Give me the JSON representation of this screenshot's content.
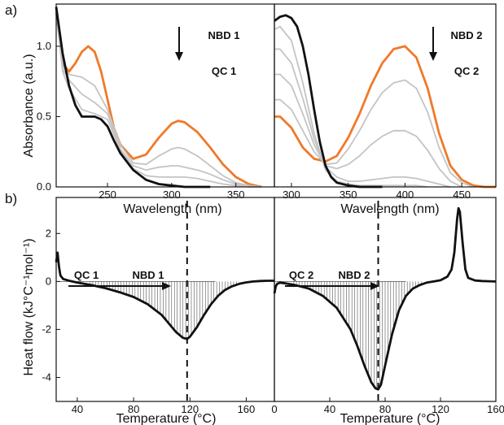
{
  "figure": {
    "panel_a_label": "a)",
    "panel_b_label": "b)",
    "colors": {
      "orange": "#f0792a",
      "black": "#111111",
      "gray": "#c4c4c4"
    }
  },
  "chart_data": [
    {
      "id": "a1",
      "type": "line",
      "xlabel": "Wavelength (nm)",
      "ylabel": "Absorbance (a.u.)",
      "xlim": [
        210,
        380
      ],
      "ylim": [
        0,
        1.3
      ],
      "xticks": [
        250,
        300,
        350
      ],
      "yticks": [
        0.0,
        0.5,
        1.0
      ],
      "annotations": [
        "NBD 1",
        "QC 1"
      ],
      "series": [
        {
          "style": "orange",
          "x": [
            210,
            215,
            220,
            225,
            230,
            235,
            240,
            245,
            250,
            255,
            260,
            270,
            280,
            290,
            300,
            305,
            310,
            320,
            330,
            340,
            350,
            360,
            365,
            370
          ],
          "y": [
            1.25,
            0.88,
            0.82,
            0.88,
            0.96,
            1.0,
            0.96,
            0.82,
            0.62,
            0.42,
            0.3,
            0.2,
            0.23,
            0.35,
            0.45,
            0.47,
            0.46,
            0.39,
            0.28,
            0.16,
            0.07,
            0.02,
            0.01,
            0.0
          ]
        },
        {
          "style": "gray",
          "x": [
            210,
            215,
            220,
            230,
            240,
            250,
            260,
            270,
            280,
            290,
            300,
            305,
            310,
            320,
            330,
            340,
            350,
            360,
            370
          ],
          "y": [
            1.25,
            0.86,
            0.8,
            0.78,
            0.72,
            0.55,
            0.3,
            0.17,
            0.16,
            0.22,
            0.27,
            0.28,
            0.27,
            0.22,
            0.15,
            0.08,
            0.03,
            0.01,
            0.0
          ]
        },
        {
          "style": "gray",
          "x": [
            210,
            215,
            220,
            230,
            240,
            250,
            260,
            270,
            280,
            290,
            300,
            305,
            310,
            320,
            330,
            340,
            350,
            360,
            370
          ],
          "y": [
            1.25,
            0.84,
            0.76,
            0.66,
            0.6,
            0.52,
            0.27,
            0.15,
            0.12,
            0.14,
            0.15,
            0.15,
            0.14,
            0.12,
            0.09,
            0.05,
            0.02,
            0.0,
            0.0
          ]
        },
        {
          "style": "gray",
          "x": [
            210,
            215,
            220,
            230,
            240,
            250,
            260,
            270,
            280,
            290,
            300,
            310,
            320,
            330,
            340,
            350,
            360,
            370
          ],
          "y": [
            1.25,
            0.82,
            0.7,
            0.55,
            0.52,
            0.48,
            0.26,
            0.13,
            0.08,
            0.07,
            0.07,
            0.07,
            0.06,
            0.04,
            0.02,
            0.01,
            0.0,
            0.0
          ]
        },
        {
          "style": "black",
          "x": [
            210,
            215,
            220,
            225,
            230,
            240,
            245,
            250,
            255,
            260,
            270,
            280,
            290,
            300,
            310,
            320,
            330
          ],
          "y": [
            1.28,
            0.95,
            0.72,
            0.58,
            0.5,
            0.5,
            0.48,
            0.43,
            0.33,
            0.24,
            0.12,
            0.05,
            0.02,
            0.01,
            0.0,
            0.0,
            0.0
          ]
        }
      ]
    },
    {
      "id": "a2",
      "type": "line",
      "xlabel": "Wavelength (nm)",
      "xlim": [
        285,
        480
      ],
      "ylim": [
        0,
        1.3
      ],
      "xticks": [
        300,
        350,
        400,
        450
      ],
      "annotations": [
        "NBD 2",
        "QC 2"
      ],
      "series": [
        {
          "style": "orange",
          "x": [
            285,
            290,
            300,
            310,
            320,
            330,
            340,
            350,
            360,
            370,
            380,
            390,
            400,
            410,
            420,
            430,
            440,
            450,
            460,
            470,
            480
          ],
          "y": [
            0.5,
            0.5,
            0.42,
            0.28,
            0.2,
            0.18,
            0.22,
            0.35,
            0.52,
            0.72,
            0.88,
            0.98,
            1.0,
            0.92,
            0.7,
            0.38,
            0.15,
            0.05,
            0.01,
            0.0,
            0.0
          ]
        },
        {
          "style": "gray",
          "x": [
            285,
            290,
            300,
            310,
            320,
            330,
            340,
            350,
            360,
            370,
            380,
            390,
            400,
            410,
            420,
            430,
            440,
            450,
            460
          ],
          "y": [
            0.62,
            0.62,
            0.55,
            0.4,
            0.25,
            0.16,
            0.17,
            0.27,
            0.4,
            0.55,
            0.67,
            0.74,
            0.76,
            0.7,
            0.53,
            0.28,
            0.1,
            0.03,
            0.0
          ]
        },
        {
          "style": "gray",
          "x": [
            285,
            290,
            300,
            310,
            320,
            330,
            340,
            350,
            360,
            370,
            380,
            390,
            400,
            410,
            420,
            430,
            440,
            450
          ],
          "y": [
            0.8,
            0.8,
            0.72,
            0.52,
            0.3,
            0.15,
            0.13,
            0.16,
            0.22,
            0.3,
            0.36,
            0.4,
            0.4,
            0.36,
            0.26,
            0.13,
            0.04,
            0.0
          ]
        },
        {
          "style": "gray",
          "x": [
            285,
            290,
            300,
            310,
            320,
            330,
            340,
            350,
            360,
            370,
            380,
            390,
            400,
            410,
            420,
            430,
            440
          ],
          "y": [
            0.98,
            0.98,
            0.88,
            0.63,
            0.34,
            0.14,
            0.07,
            0.04,
            0.04,
            0.05,
            0.06,
            0.07,
            0.07,
            0.06,
            0.04,
            0.02,
            0.0
          ]
        },
        {
          "style": "gray",
          "x": [
            285,
            290,
            300,
            310,
            320,
            330,
            340,
            350,
            360,
            370,
            380,
            390,
            400,
            410,
            420
          ],
          "y": [
            1.12,
            1.14,
            1.04,
            0.74,
            0.38,
            0.12,
            0.04,
            0.02,
            0.01,
            0.01,
            0.01,
            0.01,
            0.01,
            0.01,
            0.0
          ]
        },
        {
          "style": "black",
          "x": [
            285,
            290,
            295,
            300,
            305,
            310,
            315,
            320,
            325,
            330,
            335,
            340,
            350,
            360,
            380
          ],
          "y": [
            1.18,
            1.21,
            1.22,
            1.2,
            1.14,
            1.0,
            0.8,
            0.55,
            0.32,
            0.15,
            0.07,
            0.03,
            0.01,
            0.0,
            0.0
          ]
        }
      ]
    },
    {
      "id": "b1",
      "type": "area",
      "xlabel": "Temperature (°C)",
      "ylabel": "Heat flow (kJ°C⁻¹mol⁻¹)",
      "xlim": [
        25,
        180
      ],
      "ylim": [
        -5,
        3.5
      ],
      "xticks": [
        40,
        80,
        120,
        160
      ],
      "yticks": [
        2,
        0,
        -2,
        -4
      ],
      "vline_x": 118,
      "annotations": [
        "QC 1",
        "NBD 1"
      ],
      "series": [
        {
          "style": "black",
          "x": [
            25,
            26,
            27,
            28,
            30,
            35,
            40,
            50,
            60,
            70,
            80,
            90,
            100,
            105,
            110,
            115,
            118,
            120,
            125,
            130,
            135,
            140,
            145,
            150,
            155,
            160,
            165,
            170,
            175,
            180
          ],
          "y": [
            0.8,
            1.2,
            0.6,
            0.25,
            0.1,
            0.02,
            -0.05,
            -0.15,
            -0.28,
            -0.45,
            -0.65,
            -0.95,
            -1.4,
            -1.75,
            -2.1,
            -2.35,
            -2.4,
            -2.3,
            -1.9,
            -1.4,
            -0.95,
            -0.6,
            -0.35,
            -0.2,
            -0.1,
            -0.04,
            0.0,
            0.02,
            0.03,
            0.03
          ]
        }
      ]
    },
    {
      "id": "b2",
      "type": "area",
      "xlabel": "Temperature (°C)",
      "xlim": [
        0,
        160
      ],
      "ylim": [
        -5,
        3.5
      ],
      "xticks": [
        0,
        40,
        80,
        120,
        160
      ],
      "vline_x": 75,
      "annotations": [
        "QC 2",
        "NBD 2"
      ],
      "series": [
        {
          "style": "black",
          "x": [
            0,
            1,
            2,
            4,
            8,
            15,
            25,
            35,
            45,
            55,
            60,
            65,
            70,
            73,
            75,
            77,
            80,
            85,
            90,
            95,
            100,
            105,
            110,
            115,
            120,
            125,
            128,
            130,
            132,
            133,
            134,
            136,
            138,
            140,
            145,
            150,
            155,
            160
          ],
          "y": [
            -0.5,
            -0.2,
            -0.1,
            -0.05,
            -0.08,
            -0.15,
            -0.3,
            -0.6,
            -1.1,
            -2.0,
            -2.7,
            -3.5,
            -4.2,
            -4.45,
            -4.5,
            -4.3,
            -3.5,
            -2.2,
            -1.2,
            -0.6,
            -0.3,
            -0.15,
            -0.05,
            0.0,
            0.05,
            0.2,
            0.5,
            1.2,
            2.6,
            3.05,
            2.9,
            1.6,
            0.5,
            0.15,
            0.04,
            0.02,
            0.01,
            0.0
          ]
        }
      ]
    }
  ]
}
